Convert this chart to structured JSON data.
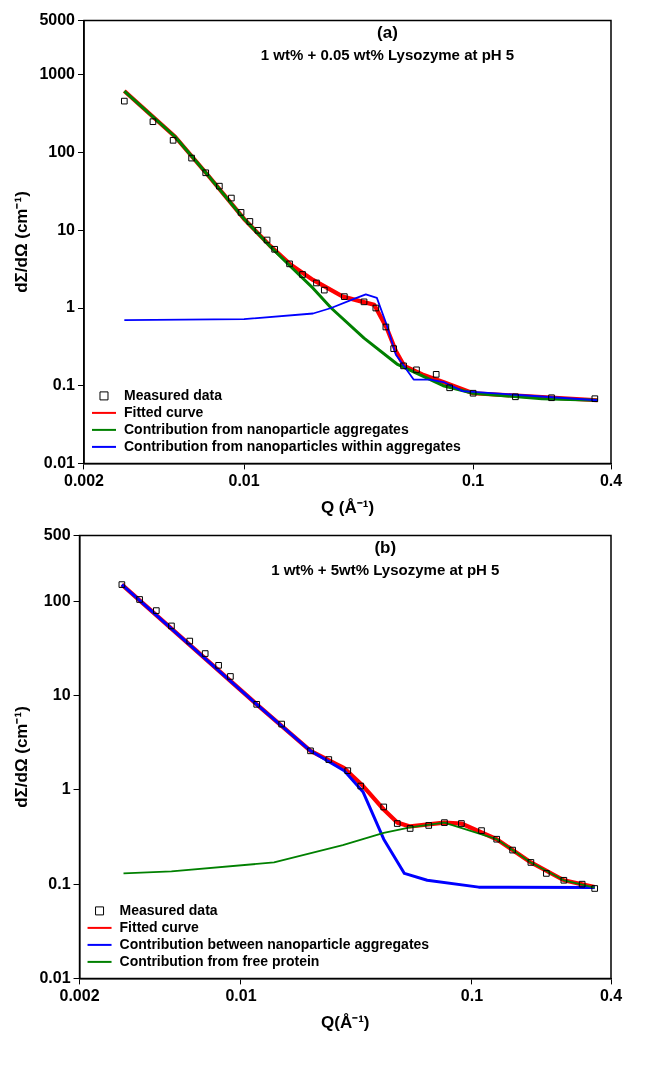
{
  "chart_data": [
    {
      "type": "line",
      "title": "(a)",
      "subtitle": "1 wt% + 0.05 wt% Lysozyme at pH 5",
      "xlabel": "Q (Å⁻¹)",
      "ylabel": "dΣ/dΩ (cm⁻¹)",
      "log": "xy",
      "xlim": [
        0.002,
        0.4
      ],
      "xticks": [
        0.002,
        0.01,
        0.1,
        0.4
      ],
      "ylim": [
        0.01,
        5000
      ],
      "yticks": [
        0.01,
        0.1,
        1,
        10,
        100,
        1000,
        5000
      ],
      "grid": false,
      "legend": "bottom left",
      "series": [
        {
          "name": "Measured data",
          "type": "scatter",
          "marker": "square",
          "color": "#000000",
          "x": [
            0.003,
            0.004,
            0.0049,
            0.0059,
            0.0068,
            0.0078,
            0.0088,
            0.0097,
            0.0106,
            0.0115,
            0.0126,
            0.0136,
            0.0158,
            0.018,
            0.0207,
            0.0224,
            0.0274,
            0.0334,
            0.0376,
            0.0416,
            0.045,
            0.0497,
            0.0566,
            0.069,
            0.079,
            0.1,
            0.153,
            0.22,
            0.34
          ],
          "values": [
            460,
            250,
            144,
            85,
            55,
            37,
            26,
            17,
            13,
            10,
            7.5,
            5.7,
            3.7,
            2.7,
            2.1,
            1.7,
            1.4,
            1.2,
            1.0,
            0.57,
            0.3,
            0.18,
            0.16,
            0.14,
            0.094,
            0.08,
            0.072,
            0.07,
            0.068
          ]
        },
        {
          "name": "Fitted curve",
          "type": "line",
          "marker": "none",
          "color": "#ff0000",
          "x": [
            0.003,
            0.005,
            0.007,
            0.01,
            0.013,
            0.016,
            0.02,
            0.027,
            0.033,
            0.037,
            0.042,
            0.046,
            0.05,
            0.06,
            0.075,
            0.1,
            0.35
          ],
          "values": [
            620,
            160,
            50,
            14,
            6.3,
            3.6,
            2.3,
            1.4,
            1.2,
            1.1,
            0.55,
            0.28,
            0.18,
            0.14,
            0.11,
            0.08,
            0.065
          ]
        },
        {
          "name": "Contribution from nanoparticle aggregates",
          "type": "line",
          "marker": "none",
          "color": "#008000",
          "x": [
            0.003,
            0.005,
            0.007,
            0.01,
            0.013,
            0.016,
            0.02,
            0.024,
            0.0334,
            0.0465,
            0.074,
            0.1,
            0.2,
            0.35
          ],
          "values": [
            620,
            160,
            50,
            14,
            6.2,
            3.4,
            1.8,
            1.0,
            0.41,
            0.19,
            0.1,
            0.08,
            0.068,
            0.065
          ]
        },
        {
          "name": "Contribution from nanoparticles within aggregates",
          "type": "line",
          "marker": "none",
          "color": "#0000ff",
          "x": [
            0.003,
            0.01,
            0.02,
            0.024,
            0.03,
            0.034,
            0.038,
            0.042,
            0.046,
            0.055,
            0.065,
            0.075,
            0.09,
            0.35
          ],
          "values": [
            0.7,
            0.72,
            0.85,
            1.0,
            1.3,
            1.5,
            1.35,
            0.6,
            0.25,
            0.12,
            0.12,
            0.11,
            0.085,
            0.065
          ]
        }
      ]
    },
    {
      "type": "line",
      "title": "(b)",
      "subtitle": "1 wt% + 5wt% Lysozyme at pH 5",
      "xlabel": "Q(Å⁻¹)",
      "ylabel": "dΣ/dΩ (cm⁻¹)",
      "log": "xy",
      "xlim": [
        0.002,
        0.4
      ],
      "xticks": [
        0.002,
        0.01,
        0.1,
        0.4
      ],
      "ylim": [
        0.01,
        500
      ],
      "yticks": [
        0.01,
        0.1,
        1,
        10,
        100,
        500
      ],
      "grid": false,
      "legend": "bottom left",
      "series": [
        {
          "name": "Measured data",
          "type": "scatter",
          "marker": "square",
          "color": "#000000",
          "x": [
            0.00305,
            0.00364,
            0.0043,
            0.005,
            0.006,
            0.007,
            0.008,
            0.009,
            0.0117,
            0.015,
            0.02,
            0.024,
            0.029,
            0.033,
            0.0415,
            0.0475,
            0.054,
            0.065,
            0.076,
            0.09,
            0.11,
            0.128,
            0.15,
            0.18,
            0.21,
            0.25,
            0.3,
            0.34
          ],
          "values": [
            151,
            105,
            80,
            55,
            38,
            28,
            21,
            16,
            8.1,
            5,
            2.6,
            2.1,
            1.6,
            1.1,
            0.66,
            0.44,
            0.39,
            0.42,
            0.45,
            0.44,
            0.37,
            0.3,
            0.23,
            0.17,
            0.13,
            0.11,
            0.1,
            0.09
          ]
        },
        {
          "name": "Fitted curve",
          "type": "line",
          "marker": "none",
          "color": "#ff0000",
          "x": [
            0.00305,
            0.0117,
            0.02,
            0.028,
            0.0338,
            0.0415,
            0.0475,
            0.054,
            0.076,
            0.09,
            0.128,
            0.18,
            0.25,
            0.34
          ],
          "values": [
            151,
            8.1,
            2.6,
            1.7,
            1.1,
            0.62,
            0.45,
            0.41,
            0.45,
            0.44,
            0.3,
            0.17,
            0.11,
            0.093
          ]
        },
        {
          "name": "Contribution between nanoparticle aggregates",
          "type": "line",
          "marker": "none",
          "color": "#0000ff",
          "x": [
            0.00305,
            0.0117,
            0.02,
            0.028,
            0.0338,
            0.0415,
            0.051,
            0.064,
            0.107,
            0.34
          ],
          "values": [
            151,
            8.1,
            2.6,
            1.6,
            0.95,
            0.3,
            0.13,
            0.11,
            0.093,
            0.092
          ]
        },
        {
          "name": "Contribution from free protein",
          "type": "line",
          "marker": "none",
          "color": "#008000",
          "x": [
            0.0031,
            0.005,
            0.0139,
            0.0276,
            0.0415,
            0.054,
            0.076,
            0.128,
            0.18,
            0.25,
            0.34
          ],
          "values": [
            0.13,
            0.137,
            0.17,
            0.26,
            0.35,
            0.4,
            0.45,
            0.3,
            0.17,
            0.11,
            0.092
          ]
        }
      ]
    }
  ]
}
